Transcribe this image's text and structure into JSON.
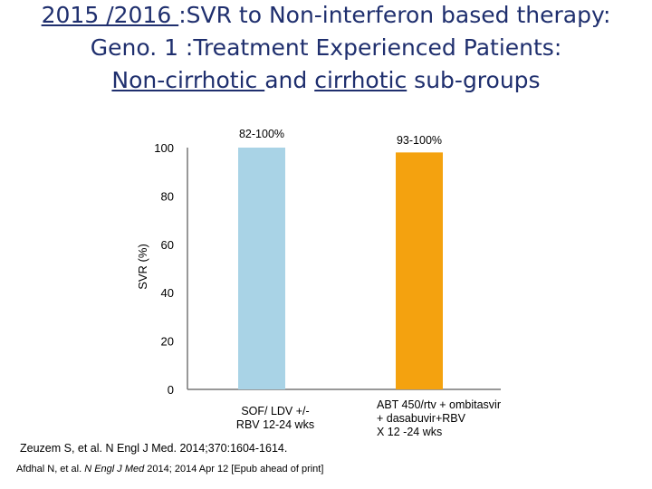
{
  "title": {
    "line1_a": "2015 /2016 ",
    "line1_b": ":SVR to Non-interferon based therapy:",
    "line2": "Geno. 1 :Treatment Experienced Patients:",
    "line3_a": "Non-cirrhotic ",
    "line3_b": "and ",
    "line3_c": "cirrhotic",
    "line3_d": " sub-groups"
  },
  "chart_data": {
    "type": "bar",
    "ylabel": "SVR (%)",
    "ylim": [
      0,
      100
    ],
    "yticks": [
      "100",
      "80",
      "60",
      "40",
      "20",
      "0"
    ],
    "grid": false,
    "categories": [
      "SOF/ LDV +/- RBV 12-24 wks",
      "ABT 450/rtv + ombitasvir + dasabuvir+RBV X 12 -24 wks"
    ],
    "category_lines": [
      [
        "SOF/ LDV +/-",
        "RBV 12-24 wks"
      ],
      [
        "ABT 450/rtv + ombitasvir",
        "+ dasabuvir+RBV",
        "X 12 -24 wks"
      ]
    ],
    "values": [
      100,
      98
    ],
    "labels": [
      "82-100%",
      "93-100%"
    ],
    "colors": [
      "#a9d3e6",
      "#f4a20f"
    ]
  },
  "references": {
    "ref1": "Zeuzem S, et al. N Engl J Med. 2014;370:1604-1614.",
    "ref2_a": "Afdhal N, et al. ",
    "ref2_b": "N Engl J Med",
    "ref2_c": " 2014; 2014 Apr 12 [Epub ahead of print]"
  }
}
